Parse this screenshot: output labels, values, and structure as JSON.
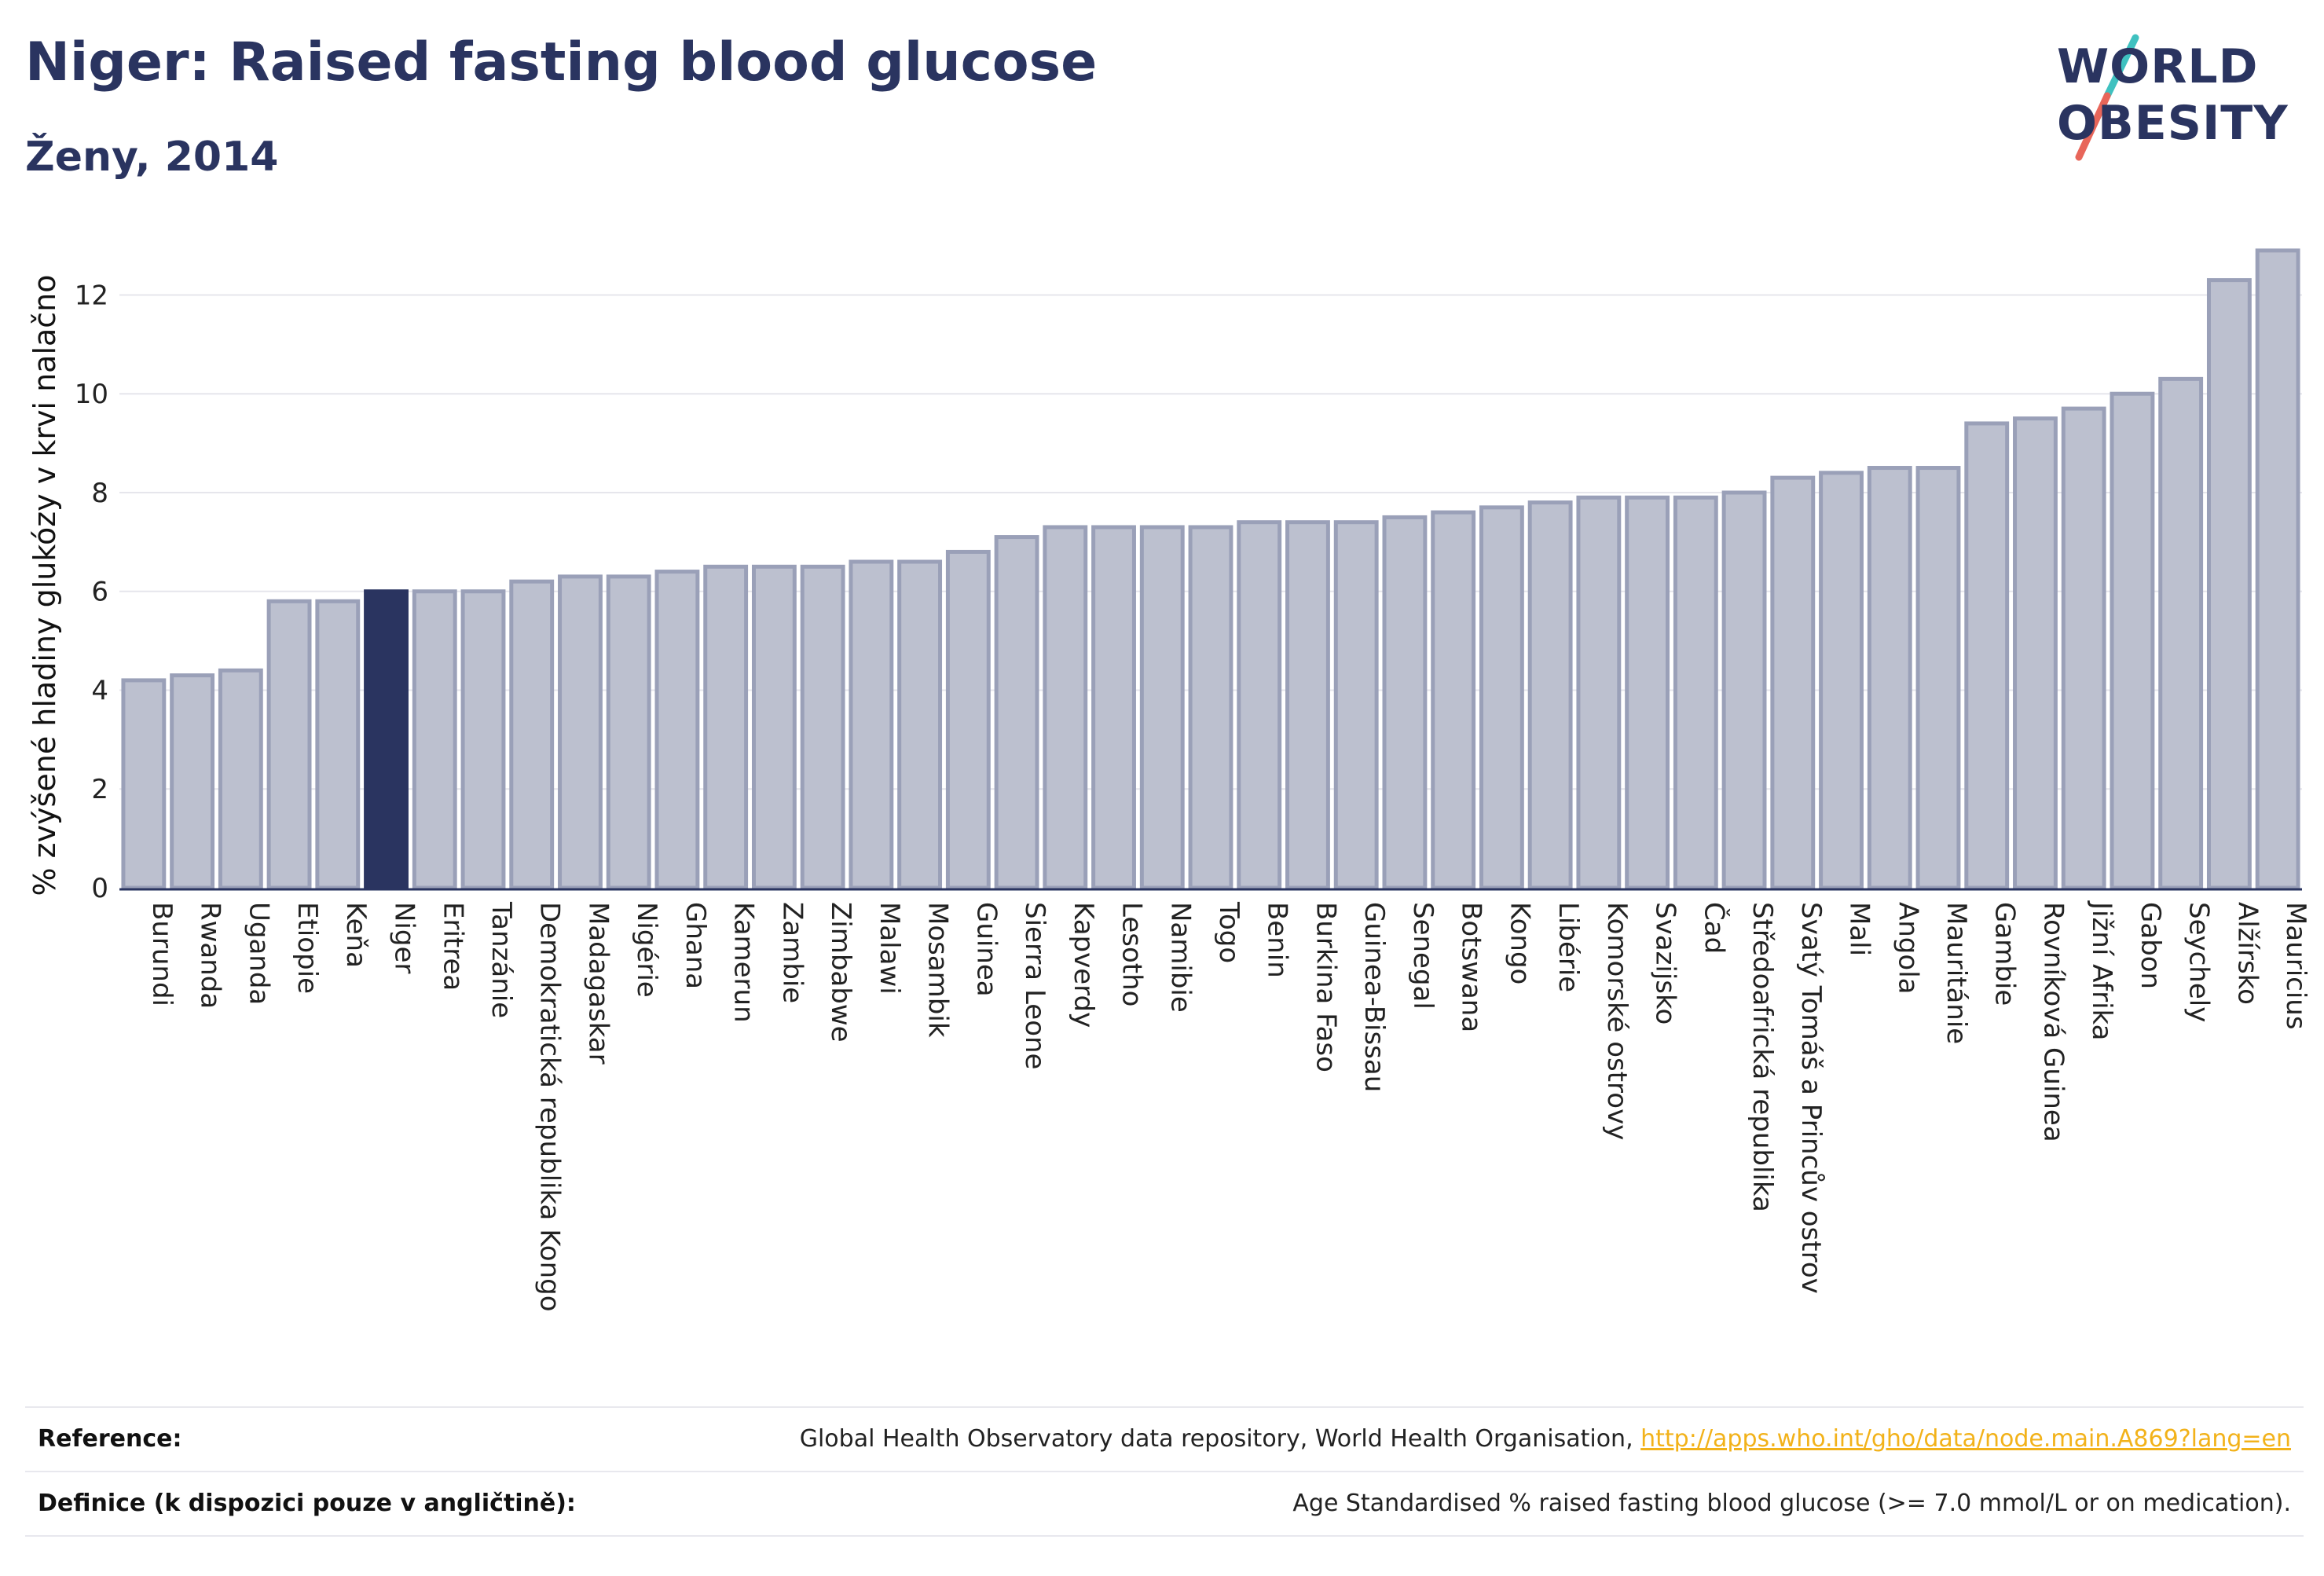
{
  "header": {
    "title": "Niger: Raised fasting blood glucose",
    "subtitle": "Ženy, 2014"
  },
  "logo": {
    "line1": "WORLD",
    "line2": "OBESITY",
    "colors": {
      "text": "#2a3460",
      "slash_top": "#3fc1c0",
      "slash_bottom": "#e8665a"
    }
  },
  "colors": {
    "bar_fill": "#bcc0cf",
    "bar_stroke": "#9aa0b8",
    "highlight_fill": "#2a3460",
    "axis": "#2a3460",
    "grid": "#e6e6ec"
  },
  "chart_data": {
    "type": "bar",
    "ylabel": "% zvýšené hladiny glukózy v krvi nalačno",
    "ylim": [
      0,
      13.2
    ],
    "yticks": [
      0,
      2,
      4,
      6,
      8,
      10,
      12
    ],
    "grid": true,
    "highlight": "Niger",
    "categories": [
      "Burundi",
      "Rwanda",
      "Uganda",
      "Etiopie",
      "Keňa",
      "Niger",
      "Eritrea",
      "Tanzánie",
      "Demokratická republika Kongo",
      "Madagaskar",
      "Nigérie",
      "Ghana",
      "Kamerun",
      "Zambie",
      "Zimbabwe",
      "Malawi",
      "Mosambik",
      "Guinea",
      "Sierra Leone",
      "Kapverdy",
      "Lesotho",
      "Namibie",
      "Togo",
      "Benin",
      "Burkina Faso",
      "Guinea-Bissau",
      "Senegal",
      "Botswana",
      "Kongo",
      "Libérie",
      "Komorské ostrovy",
      "Svazijsko",
      "Čad",
      "Středoafrická republika",
      "Svatý Tomáš a Princův ostrov",
      "Mali",
      "Angola",
      "Mauritánie",
      "Gambie",
      "Rovníková Guinea",
      "Jižní Afrika",
      "Gabon",
      "Seychely",
      "Alžírsko",
      "Mauricius"
    ],
    "values": [
      4.2,
      4.3,
      4.4,
      5.8,
      5.8,
      6.0,
      6.0,
      6.0,
      6.2,
      6.3,
      6.3,
      6.4,
      6.5,
      6.5,
      6.5,
      6.6,
      6.6,
      6.8,
      7.1,
      7.3,
      7.3,
      7.3,
      7.3,
      7.4,
      7.4,
      7.4,
      7.5,
      7.6,
      7.7,
      7.8,
      7.9,
      7.9,
      7.9,
      8.0,
      8.3,
      8.4,
      8.5,
      8.5,
      9.4,
      9.5,
      9.7,
      10.0,
      10.3,
      12.3,
      12.9
    ]
  },
  "footer": {
    "reference_label": "Reference:",
    "reference_text": "Global Health Observatory data repository, World Health Organisation, ",
    "reference_link": "http://apps.who.int/gho/data/node.main.A869?lang=en",
    "definition_label": "Definice (k dispozici pouze v angličtině):",
    "definition_text": "Age Standardised % raised fasting blood glucose (>= 7.0 mmol/L or on medication)."
  }
}
